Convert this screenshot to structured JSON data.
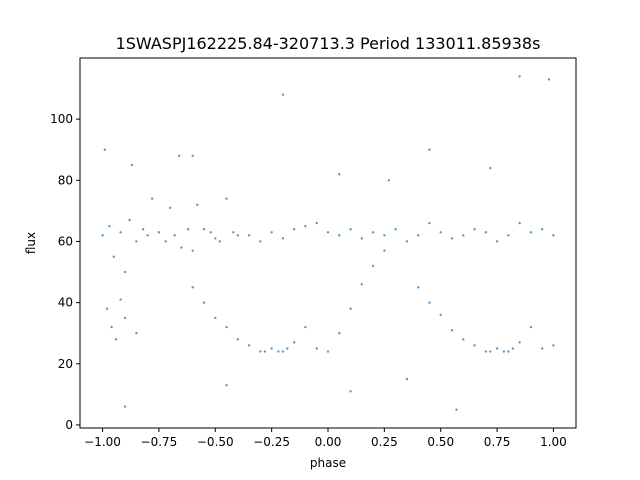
{
  "chart_data": {
    "type": "scatter",
    "title": "1SWASPJ162225.84-320713.3 Period 133011.85938s",
    "xlabel": "phase",
    "ylabel": "flux",
    "xlim": [
      -1.1,
      1.1
    ],
    "ylim": [
      -1,
      120
    ],
    "x_ticks": [
      -1.0,
      -0.75,
      -0.5,
      -0.25,
      0.0,
      0.25,
      0.5,
      0.75,
      1.0
    ],
    "x_tick_labels": [
      "−1.00",
      "−0.75",
      "−0.50",
      "−0.25",
      "0.00",
      "0.25",
      "0.50",
      "0.75",
      "1.00"
    ],
    "y_ticks": [
      0,
      20,
      40,
      60,
      80,
      100
    ],
    "y_tick_labels": [
      "0",
      "20",
      "40",
      "60",
      "80",
      "100"
    ],
    "grid": false,
    "legend": "none",
    "marker_color": "#1f77b4",
    "series": [
      {
        "points": [
          [
            -1.0,
            62
          ],
          [
            -0.97,
            65
          ],
          [
            -0.95,
            55
          ],
          [
            -0.92,
            63
          ],
          [
            -0.9,
            50
          ],
          [
            -0.88,
            67
          ],
          [
            -0.85,
            60
          ],
          [
            -0.82,
            64
          ],
          [
            -0.8,
            62
          ],
          [
            -0.78,
            74
          ],
          [
            -0.75,
            63
          ],
          [
            -0.72,
            60
          ],
          [
            -0.7,
            71
          ],
          [
            -0.68,
            62
          ],
          [
            -0.65,
            58
          ],
          [
            -0.62,
            64
          ],
          [
            -0.6,
            57
          ],
          [
            -0.58,
            72
          ],
          [
            -0.55,
            64
          ],
          [
            -0.52,
            63
          ],
          [
            -0.5,
            61
          ],
          [
            -0.48,
            60
          ],
          [
            -0.45,
            74
          ],
          [
            -0.42,
            63
          ],
          [
            -0.4,
            62
          ],
          [
            -0.35,
            62
          ],
          [
            -0.3,
            60
          ],
          [
            -0.25,
            63
          ],
          [
            -0.2,
            61
          ],
          [
            -0.15,
            64
          ],
          [
            -0.1,
            65
          ],
          [
            -0.05,
            66
          ],
          [
            0.0,
            63
          ],
          [
            0.05,
            62
          ],
          [
            0.1,
            64
          ],
          [
            0.15,
            61
          ],
          [
            0.2,
            63
          ],
          [
            0.25,
            62
          ],
          [
            0.3,
            64
          ],
          [
            0.35,
            60
          ],
          [
            0.4,
            62
          ],
          [
            0.45,
            66
          ],
          [
            0.5,
            63
          ],
          [
            0.55,
            61
          ],
          [
            0.6,
            62
          ],
          [
            0.65,
            64
          ],
          [
            0.7,
            63
          ],
          [
            0.75,
            60
          ],
          [
            0.8,
            62
          ],
          [
            0.85,
            66
          ],
          [
            0.9,
            63
          ],
          [
            0.95,
            64
          ],
          [
            1.0,
            62
          ],
          [
            -0.98,
            38
          ],
          [
            -0.96,
            32
          ],
          [
            -0.94,
            28
          ],
          [
            -0.92,
            41
          ],
          [
            -0.9,
            35
          ],
          [
            -0.85,
            30
          ],
          [
            -0.6,
            45
          ],
          [
            -0.55,
            40
          ],
          [
            -0.5,
            35
          ],
          [
            -0.45,
            32
          ],
          [
            -0.4,
            28
          ],
          [
            -0.35,
            26
          ],
          [
            -0.3,
            24
          ],
          [
            -0.28,
            24
          ],
          [
            -0.25,
            25
          ],
          [
            -0.22,
            24
          ],
          [
            -0.2,
            24
          ],
          [
            -0.18,
            25
          ],
          [
            -0.15,
            27
          ],
          [
            -0.1,
            32
          ],
          [
            -0.05,
            25
          ],
          [
            0.0,
            24
          ],
          [
            0.05,
            30
          ],
          [
            0.1,
            38
          ],
          [
            0.15,
            46
          ],
          [
            0.2,
            52
          ],
          [
            0.25,
            57
          ],
          [
            0.4,
            45
          ],
          [
            0.45,
            40
          ],
          [
            0.5,
            36
          ],
          [
            0.55,
            31
          ],
          [
            0.6,
            28
          ],
          [
            0.65,
            26
          ],
          [
            0.7,
            24
          ],
          [
            0.72,
            24
          ],
          [
            0.75,
            25
          ],
          [
            0.78,
            24
          ],
          [
            0.8,
            24
          ],
          [
            0.82,
            25
          ],
          [
            0.85,
            27
          ],
          [
            0.9,
            32
          ],
          [
            0.95,
            25
          ],
          [
            1.0,
            26
          ],
          [
            -0.99,
            90
          ],
          [
            -0.87,
            85
          ],
          [
            -0.66,
            88
          ],
          [
            -0.2,
            108
          ],
          [
            0.05,
            82
          ],
          [
            0.27,
            80
          ],
          [
            0.45,
            90
          ],
          [
            0.72,
            84
          ],
          [
            0.85,
            114
          ],
          [
            0.98,
            113
          ],
          [
            -0.45,
            13
          ],
          [
            0.1,
            11
          ],
          [
            -0.9,
            6
          ],
          [
            0.57,
            5
          ],
          [
            0.35,
            15
          ],
          [
            -0.6,
            88
          ]
        ]
      }
    ]
  }
}
